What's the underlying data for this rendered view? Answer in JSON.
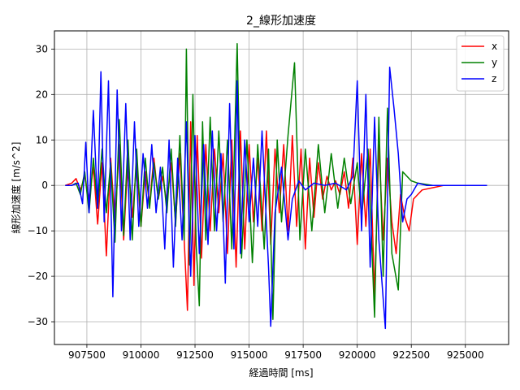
{
  "chart_data": {
    "type": "line",
    "title": "2_線形加速度",
    "xlabel": "経過時間 [ms]",
    "ylabel": "線形加速度 [m/s^2]",
    "xlim": [
      906000,
      927000
    ],
    "ylim": [
      -35,
      34
    ],
    "xticks": [
      907500,
      910000,
      912500,
      915000,
      917500,
      920000,
      922500,
      925000
    ],
    "xtick_labels": [
      "907500",
      "910000",
      "912500",
      "915000",
      "917500",
      "920000",
      "922500",
      "925000"
    ],
    "yticks": [
      -30,
      -20,
      -10,
      0,
      10,
      20,
      30
    ],
    "ytick_labels": [
      "−30",
      "−20",
      "−10",
      "0",
      "10",
      "20",
      "30"
    ],
    "grid": true,
    "legend_position": "top-right",
    "series": [
      {
        "name": "x",
        "color": "#ff0000",
        "points": [
          [
            906500,
            0
          ],
          [
            906800,
            0.5
          ],
          [
            907000,
            1.5
          ],
          [
            907200,
            -1
          ],
          [
            907400,
            2
          ],
          [
            907600,
            -3
          ],
          [
            907800,
            4
          ],
          [
            908000,
            -8.5
          ],
          [
            908200,
            5
          ],
          [
            908400,
            -15.5
          ],
          [
            908600,
            6
          ],
          [
            908800,
            -8
          ],
          [
            909000,
            9
          ],
          [
            909200,
            -12
          ],
          [
            909400,
            6
          ],
          [
            909600,
            -7
          ],
          [
            909800,
            5
          ],
          [
            910000,
            -9
          ],
          [
            910200,
            3
          ],
          [
            910400,
            -4
          ],
          [
            910600,
            6
          ],
          [
            910800,
            -3
          ],
          [
            911000,
            2
          ],
          [
            911200,
            -4
          ],
          [
            911400,
            5
          ],
          [
            911600,
            -8
          ],
          [
            911800,
            7
          ],
          [
            912000,
            -12
          ],
          [
            912150,
            -27.5
          ],
          [
            912300,
            14
          ],
          [
            912450,
            -22
          ],
          [
            912600,
            11
          ],
          [
            912800,
            -16
          ],
          [
            913000,
            9
          ],
          [
            913200,
            -10
          ],
          [
            913400,
            8
          ],
          [
            913600,
            -6
          ],
          [
            913800,
            7
          ],
          [
            914000,
            -15
          ],
          [
            914200,
            10
          ],
          [
            914400,
            -18
          ],
          [
            914600,
            12
          ],
          [
            914800,
            -14
          ],
          [
            915000,
            9
          ],
          [
            915200,
            -8
          ],
          [
            915400,
            6
          ],
          [
            915600,
            -10
          ],
          [
            915800,
            12
          ],
          [
            916000,
            -13
          ],
          [
            916200,
            8
          ],
          [
            916400,
            -6
          ],
          [
            916600,
            9
          ],
          [
            916800,
            -10
          ],
          [
            917000,
            11
          ],
          [
            917200,
            -9
          ],
          [
            917400,
            8
          ],
          [
            917600,
            -14
          ],
          [
            917800,
            6
          ],
          [
            918000,
            -7
          ],
          [
            918200,
            5
          ],
          [
            918400,
            -3
          ],
          [
            918600,
            2
          ],
          [
            918800,
            -1
          ],
          [
            919000,
            1
          ],
          [
            919200,
            -2
          ],
          [
            919400,
            3
          ],
          [
            919600,
            -5
          ],
          [
            919800,
            6
          ],
          [
            920000,
            -13
          ],
          [
            920200,
            7
          ],
          [
            920400,
            -9
          ],
          [
            920600,
            8
          ],
          [
            920800,
            -24.5
          ],
          [
            921000,
            9
          ],
          [
            921200,
            -12
          ],
          [
            921400,
            6
          ],
          [
            921600,
            -8
          ],
          [
            921800,
            -15
          ],
          [
            922000,
            -2
          ],
          [
            922200,
            -7
          ],
          [
            922400,
            -10
          ],
          [
            922600,
            -3
          ],
          [
            922800,
            -2
          ],
          [
            923000,
            -1
          ],
          [
            923500,
            -0.5
          ],
          [
            924000,
            0
          ],
          [
            925000,
            0
          ],
          [
            926000,
            0
          ]
        ]
      },
      {
        "name": "y",
        "color": "#008000",
        "points": [
          [
            906500,
            0
          ],
          [
            906800,
            0
          ],
          [
            907000,
            0.5
          ],
          [
            907200,
            -2
          ],
          [
            907400,
            3
          ],
          [
            907600,
            -6
          ],
          [
            907800,
            6
          ],
          [
            908000,
            -5
          ],
          [
            908200,
            8
          ],
          [
            908400,
            -6
          ],
          [
            908600,
            5
          ],
          [
            908800,
            -12.5
          ],
          [
            909000,
            14.5
          ],
          [
            909200,
            -11
          ],
          [
            909400,
            10
          ],
          [
            909600,
            -12
          ],
          [
            909800,
            8
          ],
          [
            910000,
            -9
          ],
          [
            910200,
            6
          ],
          [
            910400,
            -5
          ],
          [
            910600,
            5
          ],
          [
            910800,
            -3
          ],
          [
            911000,
            4
          ],
          [
            911200,
            -6
          ],
          [
            911400,
            8
          ],
          [
            911600,
            -9
          ],
          [
            911800,
            11
          ],
          [
            912000,
            -12
          ],
          [
            912100,
            30
          ],
          [
            912250,
            -17.5
          ],
          [
            912400,
            20
          ],
          [
            912550,
            -13
          ],
          [
            912700,
            -26.5
          ],
          [
            912850,
            14
          ],
          [
            913000,
            -12
          ],
          [
            913200,
            15
          ],
          [
            913400,
            -10
          ],
          [
            913600,
            12
          ],
          [
            913800,
            -8
          ],
          [
            914000,
            10
          ],
          [
            914200,
            -14
          ],
          [
            914450,
            31.2
          ],
          [
            914650,
            -16
          ],
          [
            914900,
            10
          ],
          [
            915150,
            -17
          ],
          [
            915400,
            9
          ],
          [
            915700,
            -14
          ],
          [
            915900,
            8
          ],
          [
            916100,
            -29.5
          ],
          [
            916300,
            10
          ],
          [
            916500,
            -8
          ],
          [
            916800,
            11
          ],
          [
            917100,
            27
          ],
          [
            917350,
            -12
          ],
          [
            917600,
            8
          ],
          [
            917900,
            -10
          ],
          [
            918200,
            9
          ],
          [
            918500,
            -6
          ],
          [
            918800,
            7
          ],
          [
            919100,
            -5
          ],
          [
            919400,
            6
          ],
          [
            919700,
            -4
          ],
          [
            920000,
            5
          ],
          [
            920200,
            -7
          ],
          [
            920500,
            8
          ],
          [
            920800,
            -29
          ],
          [
            921000,
            15
          ],
          [
            921200,
            -20
          ],
          [
            921400,
            17
          ],
          [
            921600,
            -15
          ],
          [
            921900,
            -23
          ],
          [
            922100,
            3
          ],
          [
            922300,
            2
          ],
          [
            922500,
            1
          ],
          [
            922800,
            0.5
          ],
          [
            923500,
            0
          ],
          [
            925000,
            0
          ],
          [
            926000,
            0
          ]
        ]
      },
      {
        "name": "z",
        "color": "#0000ff",
        "points": [
          [
            906500,
            0
          ],
          [
            906800,
            0
          ],
          [
            907100,
            0.5
          ],
          [
            907300,
            -4
          ],
          [
            907450,
            9.5
          ],
          [
            907600,
            -6
          ],
          [
            907800,
            16.5
          ],
          [
            908000,
            -5
          ],
          [
            908150,
            25
          ],
          [
            908300,
            -8
          ],
          [
            908500,
            23
          ],
          [
            908700,
            -24.5
          ],
          [
            908900,
            21
          ],
          [
            909100,
            -10
          ],
          [
            909300,
            18
          ],
          [
            909500,
            -12
          ],
          [
            909700,
            14
          ],
          [
            909900,
            -9
          ],
          [
            910100,
            7
          ],
          [
            910300,
            -5
          ],
          [
            910500,
            9
          ],
          [
            910700,
            -6
          ],
          [
            910900,
            4
          ],
          [
            911100,
            -14
          ],
          [
            911300,
            10
          ],
          [
            911500,
            -18
          ],
          [
            911700,
            6
          ],
          [
            911900,
            -12
          ],
          [
            912100,
            14
          ],
          [
            912300,
            -20
          ],
          [
            912500,
            11
          ],
          [
            912700,
            -15
          ],
          [
            912900,
            9
          ],
          [
            913100,
            -13
          ],
          [
            913300,
            12
          ],
          [
            913500,
            -10
          ],
          [
            913700,
            7
          ],
          [
            913900,
            -21.5
          ],
          [
            914100,
            18
          ],
          [
            914300,
            -14
          ],
          [
            914450,
            23
          ],
          [
            914600,
            -15
          ],
          [
            914800,
            10
          ],
          [
            915000,
            -8
          ],
          [
            915200,
            6
          ],
          [
            915400,
            -9
          ],
          [
            915600,
            12
          ],
          [
            915900,
            -18
          ],
          [
            916000,
            -31
          ],
          [
            916200,
            -6
          ],
          [
            916500,
            4
          ],
          [
            916800,
            -12
          ],
          [
            917000,
            -3
          ],
          [
            917300,
            1
          ],
          [
            917600,
            -1
          ],
          [
            918000,
            0.5
          ],
          [
            918500,
            0
          ],
          [
            919000,
            0.5
          ],
          [
            919500,
            -1
          ],
          [
            919800,
            2
          ],
          [
            920000,
            23
          ],
          [
            920200,
            -10
          ],
          [
            920400,
            20
          ],
          [
            920600,
            -18
          ],
          [
            920800,
            15
          ],
          [
            921000,
            -12
          ],
          [
            921300,
            -31.5
          ],
          [
            921500,
            26
          ],
          [
            921700,
            17
          ],
          [
            921900,
            7
          ],
          [
            922100,
            -8
          ],
          [
            922300,
            -3
          ],
          [
            922500,
            -2
          ],
          [
            922800,
            0.5
          ],
          [
            923200,
            0
          ],
          [
            924000,
            0
          ],
          [
            925000,
            0
          ],
          [
            926000,
            0
          ]
        ]
      }
    ]
  }
}
